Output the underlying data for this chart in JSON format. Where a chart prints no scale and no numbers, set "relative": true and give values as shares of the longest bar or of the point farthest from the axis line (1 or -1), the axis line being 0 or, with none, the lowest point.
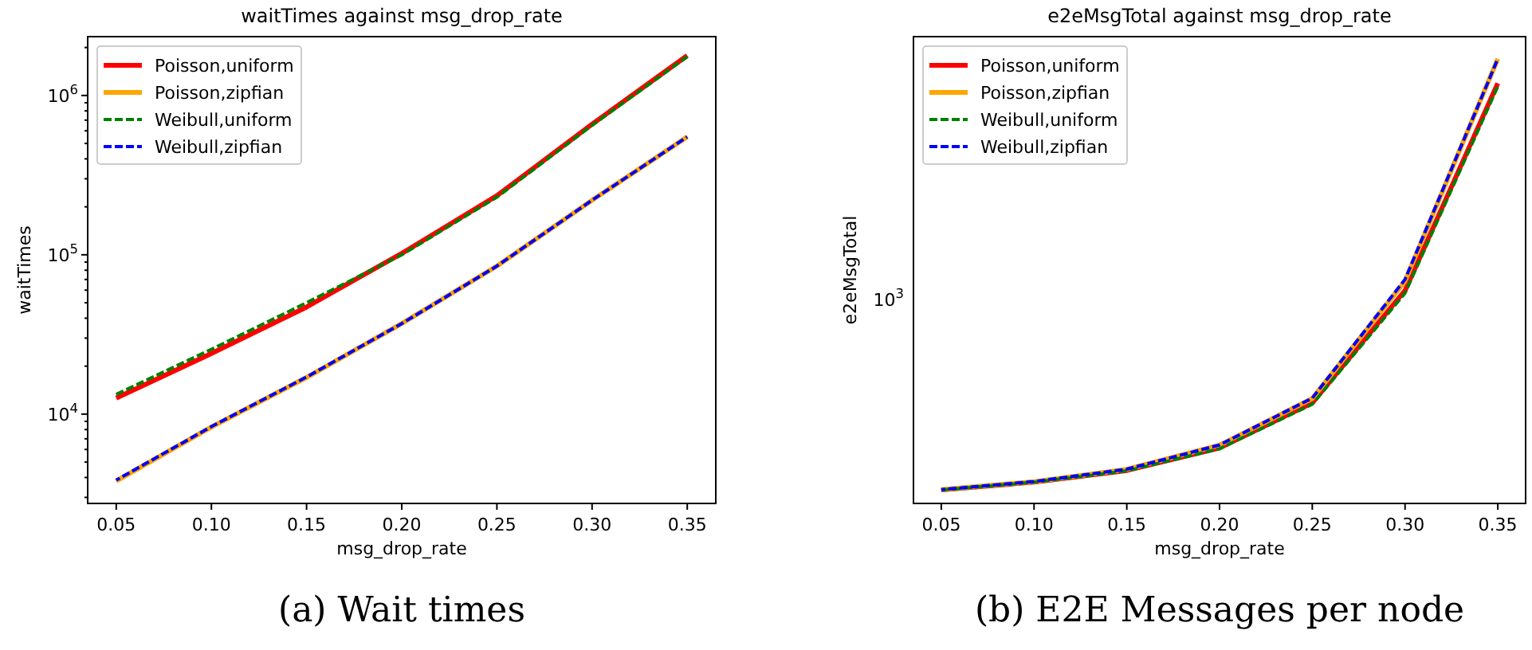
{
  "chart_data": [
    {
      "type": "line",
      "title": "waitTimes against msg_drop_rate",
      "xlabel": "msg_drop_rate",
      "ylabel": "waitTimes",
      "log": "y",
      "legend": "top left",
      "grid": false,
      "x": [
        0.05,
        0.1,
        0.15,
        0.2,
        0.25,
        0.3,
        0.35
      ],
      "xlim": [
        0.035,
        0.365
      ],
      "xticks": [
        {
          "value": 0.05,
          "label": "0.05"
        },
        {
          "value": 0.1,
          "label": "0.10"
        },
        {
          "value": 0.15,
          "label": "0.15"
        },
        {
          "value": 0.2,
          "label": "0.20"
        },
        {
          "value": 0.25,
          "label": "0.25"
        },
        {
          "value": 0.3,
          "label": "0.30"
        },
        {
          "value": 0.35,
          "label": "0.35"
        }
      ],
      "ylim": [
        2750,
        2340000
      ],
      "yticks": [
        {
          "value": 3000,
          "label": null
        },
        {
          "value": 4000,
          "label": null
        },
        {
          "value": 5000,
          "label": null
        },
        {
          "value": 6000,
          "label": null
        },
        {
          "value": 7000,
          "label": null
        },
        {
          "value": 8000,
          "label": null
        },
        {
          "value": 9000,
          "label": null
        },
        {
          "value": 10000,
          "label": "10$^{4}$"
        },
        {
          "value": 20000,
          "label": null
        },
        {
          "value": 30000,
          "label": null
        },
        {
          "value": 40000,
          "label": null
        },
        {
          "value": 50000,
          "label": null
        },
        {
          "value": 60000,
          "label": null
        },
        {
          "value": 70000,
          "label": null
        },
        {
          "value": 80000,
          "label": null
        },
        {
          "value": 90000,
          "label": null
        },
        {
          "value": 100000,
          "label": "10$^{5}$"
        },
        {
          "value": 200000,
          "label": null
        },
        {
          "value": 300000,
          "label": null
        },
        {
          "value": 400000,
          "label": null
        },
        {
          "value": 500000,
          "label": null
        },
        {
          "value": 600000,
          "label": null
        },
        {
          "value": 700000,
          "label": null
        },
        {
          "value": 800000,
          "label": null
        },
        {
          "value": 900000,
          "label": null
        },
        {
          "value": 1000000,
          "label": "10$^{6}$"
        },
        {
          "value": 2000000,
          "label": null
        }
      ],
      "annotations": [
        "(a) Wait times"
      ],
      "series": [
        {
          "name": "Poisson,uniform",
          "color": "#ff0000",
          "line_style": "solid",
          "values": [
            12600,
            24000,
            47000,
            102000,
            235000,
            660000,
            1780000
          ]
        },
        {
          "name": "Poisson,zipfian",
          "color": "#ffa500",
          "line_style": "solid",
          "values": [
            3800,
            8300,
            17000,
            37000,
            85000,
            220000,
            550000
          ]
        },
        {
          "name": "Weibull,uniform",
          "color": "#008000",
          "line_style": "dashed",
          "values": [
            13300,
            25500,
            50000,
            100000,
            230000,
            650000,
            1750000
          ]
        },
        {
          "name": "Weibull,zipfian",
          "color": "#0000ff",
          "line_style": "dashed",
          "values": [
            3850,
            8350,
            17100,
            37000,
            85000,
            220000,
            550000
          ]
        }
      ]
    },
    {
      "type": "line",
      "title": "e2eMsgTotal against msg_drop_rate",
      "xlabel": "msg_drop_rate",
      "ylabel": "e2eMsgTotal",
      "legend": "top left",
      "grid": false,
      "x": [
        0.05,
        0.1,
        0.15,
        0.2,
        0.25,
        0.3,
        0.35
      ],
      "xlim": [
        0.035,
        0.365
      ],
      "xticks": [
        {
          "value": 0.05,
          "label": "0.05"
        },
        {
          "value": 0.1,
          "label": "0.10"
        },
        {
          "value": 0.15,
          "label": "0.15"
        },
        {
          "value": 0.2,
          "label": "0.20"
        },
        {
          "value": 0.25,
          "label": "0.25"
        },
        {
          "value": 0.3,
          "label": "0.30"
        },
        {
          "value": 0.35,
          "label": "0.35"
        }
      ],
      "relative": true,
      "annotations": [
        "(b) E2E Messages per node",
        "10$^{3}$"
      ],
      "series": [
        {
          "name": "Poisson,uniform",
          "color": "#ff0000",
          "line_style": "solid",
          "values": [
            0.0304,
            0.0479,
            0.074,
            0.1247,
            0.226,
            0.479,
            0.945
          ]
        },
        {
          "name": "Poisson,zipfian",
          "color": "#ffa500",
          "line_style": "solid",
          "values": [
            0.0311,
            0.049,
            0.0767,
            0.131,
            0.236,
            0.5,
            1
          ]
        },
        {
          "name": "Weibull,uniform",
          "color": "#008000",
          "line_style": "dashed",
          "values": [
            0.0301,
            0.0477,
            0.0733,
            0.123,
            0.223,
            0.473,
            0.938
          ]
        },
        {
          "name": "Weibull,zipfian",
          "color": "#0000ff",
          "line_style": "dashed",
          "values": [
            0.0311,
            0.0493,
            0.077,
            0.1315,
            0.237,
            0.504,
            1
          ]
        }
      ]
    }
  ]
}
